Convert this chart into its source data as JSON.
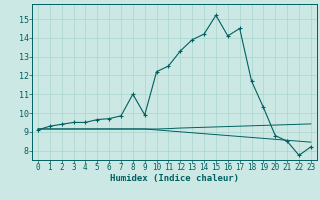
{
  "xlabel": "Humidex (Indice chaleur)",
  "bg_color": "#cce8e4",
  "line_color": "#006060",
  "grid_color": "#aad4ce",
  "x_values": [
    0,
    1,
    2,
    3,
    4,
    5,
    6,
    7,
    8,
    9,
    10,
    11,
    12,
    13,
    14,
    15,
    16,
    17,
    18,
    19,
    20,
    21,
    22,
    23
  ],
  "humidex": [
    9.1,
    9.3,
    9.4,
    9.5,
    9.5,
    9.65,
    9.7,
    9.85,
    11.0,
    9.9,
    12.2,
    12.5,
    13.3,
    13.9,
    14.2,
    15.2,
    14.1,
    14.5,
    11.7,
    10.3,
    8.8,
    8.5,
    7.75,
    8.2
  ],
  "ref_upper": [
    9.15,
    9.15,
    9.15,
    9.15,
    9.15,
    9.15,
    9.15,
    9.15,
    9.15,
    9.15,
    9.15,
    9.17,
    9.2,
    9.22,
    9.24,
    9.26,
    9.28,
    9.3,
    9.32,
    9.34,
    9.36,
    9.38,
    9.4,
    9.42
  ],
  "ref_lower": [
    9.15,
    9.15,
    9.15,
    9.15,
    9.15,
    9.15,
    9.15,
    9.15,
    9.15,
    9.15,
    9.1,
    9.05,
    9.0,
    8.95,
    8.9,
    8.85,
    8.8,
    8.75,
    8.7,
    8.65,
    8.6,
    8.55,
    8.5,
    8.45
  ],
  "ylim": [
    7.5,
    15.8
  ],
  "xlim": [
    -0.5,
    23.5
  ],
  "yticks": [
    8,
    9,
    10,
    11,
    12,
    13,
    14,
    15
  ],
  "xticks": [
    0,
    1,
    2,
    3,
    4,
    5,
    6,
    7,
    8,
    9,
    10,
    11,
    12,
    13,
    14,
    15,
    16,
    17,
    18,
    19,
    20,
    21,
    22,
    23
  ],
  "xlabel_fontsize": 6.5,
  "tick_fontsize": 5.5
}
